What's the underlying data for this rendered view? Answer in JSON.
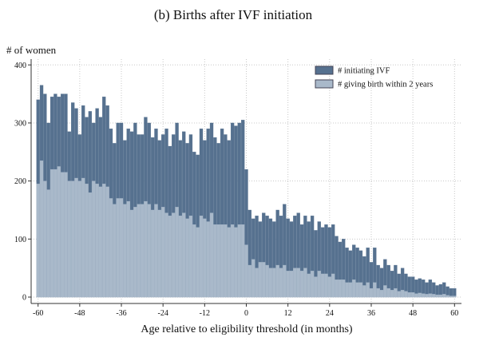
{
  "chart_data": {
    "type": "histogram-overlap",
    "title": "(b) Births after IVF initiation",
    "y_label": "# of women",
    "x_label": "Age relative to eligibility threshold (in months)",
    "x": [
      -60,
      -59,
      -58,
      -57,
      -56,
      -55,
      -54,
      -53,
      -52,
      -51,
      -50,
      -49,
      -48,
      -47,
      -46,
      -45,
      -44,
      -43,
      -42,
      -41,
      -40,
      -39,
      -38,
      -37,
      -36,
      -35,
      -34,
      -33,
      -32,
      -31,
      -30,
      -29,
      -28,
      -27,
      -26,
      -25,
      -24,
      -23,
      -22,
      -21,
      -20,
      -19,
      -18,
      -17,
      -16,
      -15,
      -14,
      -13,
      -12,
      -11,
      -10,
      -9,
      -8,
      -7,
      -6,
      -5,
      -4,
      -3,
      -2,
      -1,
      0,
      1,
      2,
      3,
      4,
      5,
      6,
      7,
      8,
      9,
      10,
      11,
      12,
      13,
      14,
      15,
      16,
      17,
      18,
      19,
      20,
      21,
      22,
      23,
      24,
      25,
      26,
      27,
      28,
      29,
      30,
      31,
      32,
      33,
      34,
      35,
      36,
      37,
      38,
      39,
      40,
      41,
      42,
      43,
      44,
      45,
      46,
      47,
      48,
      49,
      50,
      51,
      52,
      53,
      54,
      55,
      56,
      57,
      58,
      59,
      60
    ],
    "series": [
      {
        "name": "# initiating IVF",
        "color": "#56718f",
        "values": [
          340,
          365,
          350,
          300,
          345,
          350,
          345,
          350,
          350,
          285,
          335,
          325,
          280,
          330,
          310,
          320,
          300,
          325,
          310,
          345,
          330,
          290,
          265,
          300,
          300,
          270,
          290,
          285,
          300,
          280,
          280,
          310,
          300,
          275,
          290,
          270,
          280,
          290,
          260,
          280,
          300,
          270,
          285,
          265,
          280,
          250,
          245,
          290,
          270,
          290,
          300,
          275,
          265,
          290,
          280,
          270,
          300,
          295,
          300,
          305,
          220,
          150,
          135,
          140,
          130,
          145,
          140,
          135,
          130,
          150,
          140,
          160,
          135,
          130,
          140,
          145,
          125,
          140,
          130,
          140,
          115,
          130,
          120,
          125,
          120,
          125,
          105,
          95,
          100,
          85,
          80,
          90,
          85,
          80,
          70,
          85,
          60,
          85,
          55,
          50,
          65,
          55,
          45,
          55,
          40,
          50,
          40,
          35,
          35,
          30,
          32,
          30,
          25,
          30,
          25,
          20,
          22,
          25,
          18,
          15,
          15
        ]
      },
      {
        "name": "# giving birth within 2 years",
        "color": "#a9b9ca",
        "values": [
          195,
          235,
          200,
          185,
          220,
          220,
          225,
          215,
          215,
          200,
          200,
          205,
          200,
          205,
          195,
          180,
          200,
          195,
          190,
          195,
          190,
          170,
          160,
          170,
          170,
          160,
          165,
          150,
          155,
          160,
          160,
          165,
          160,
          150,
          160,
          150,
          155,
          145,
          140,
          145,
          155,
          140,
          145,
          135,
          140,
          125,
          120,
          140,
          135,
          130,
          145,
          125,
          125,
          125,
          125,
          120,
          125,
          120,
          125,
          125,
          90,
          55,
          65,
          50,
          60,
          60,
          55,
          50,
          50,
          55,
          50,
          55,
          45,
          45,
          50,
          50,
          45,
          50,
          40,
          45,
          35,
          45,
          40,
          40,
          35,
          40,
          30,
          30,
          30,
          25,
          25,
          30,
          25,
          25,
          20,
          25,
          15,
          25,
          15,
          12,
          20,
          15,
          12,
          15,
          10,
          12,
          10,
          8,
          8,
          6,
          7,
          6,
          5,
          6,
          5,
          4,
          4,
          5,
          3,
          2,
          2
        ]
      }
    ],
    "xlim": [
      -62,
      62
    ],
    "ylim": [
      -11,
      410
    ],
    "xticks": [
      -60,
      -48,
      -36,
      -24,
      -12,
      0,
      12,
      24,
      36,
      48,
      60
    ],
    "yticks": [
      0,
      100,
      200,
      300,
      400
    ],
    "grid": true,
    "legend": "top-right"
  }
}
